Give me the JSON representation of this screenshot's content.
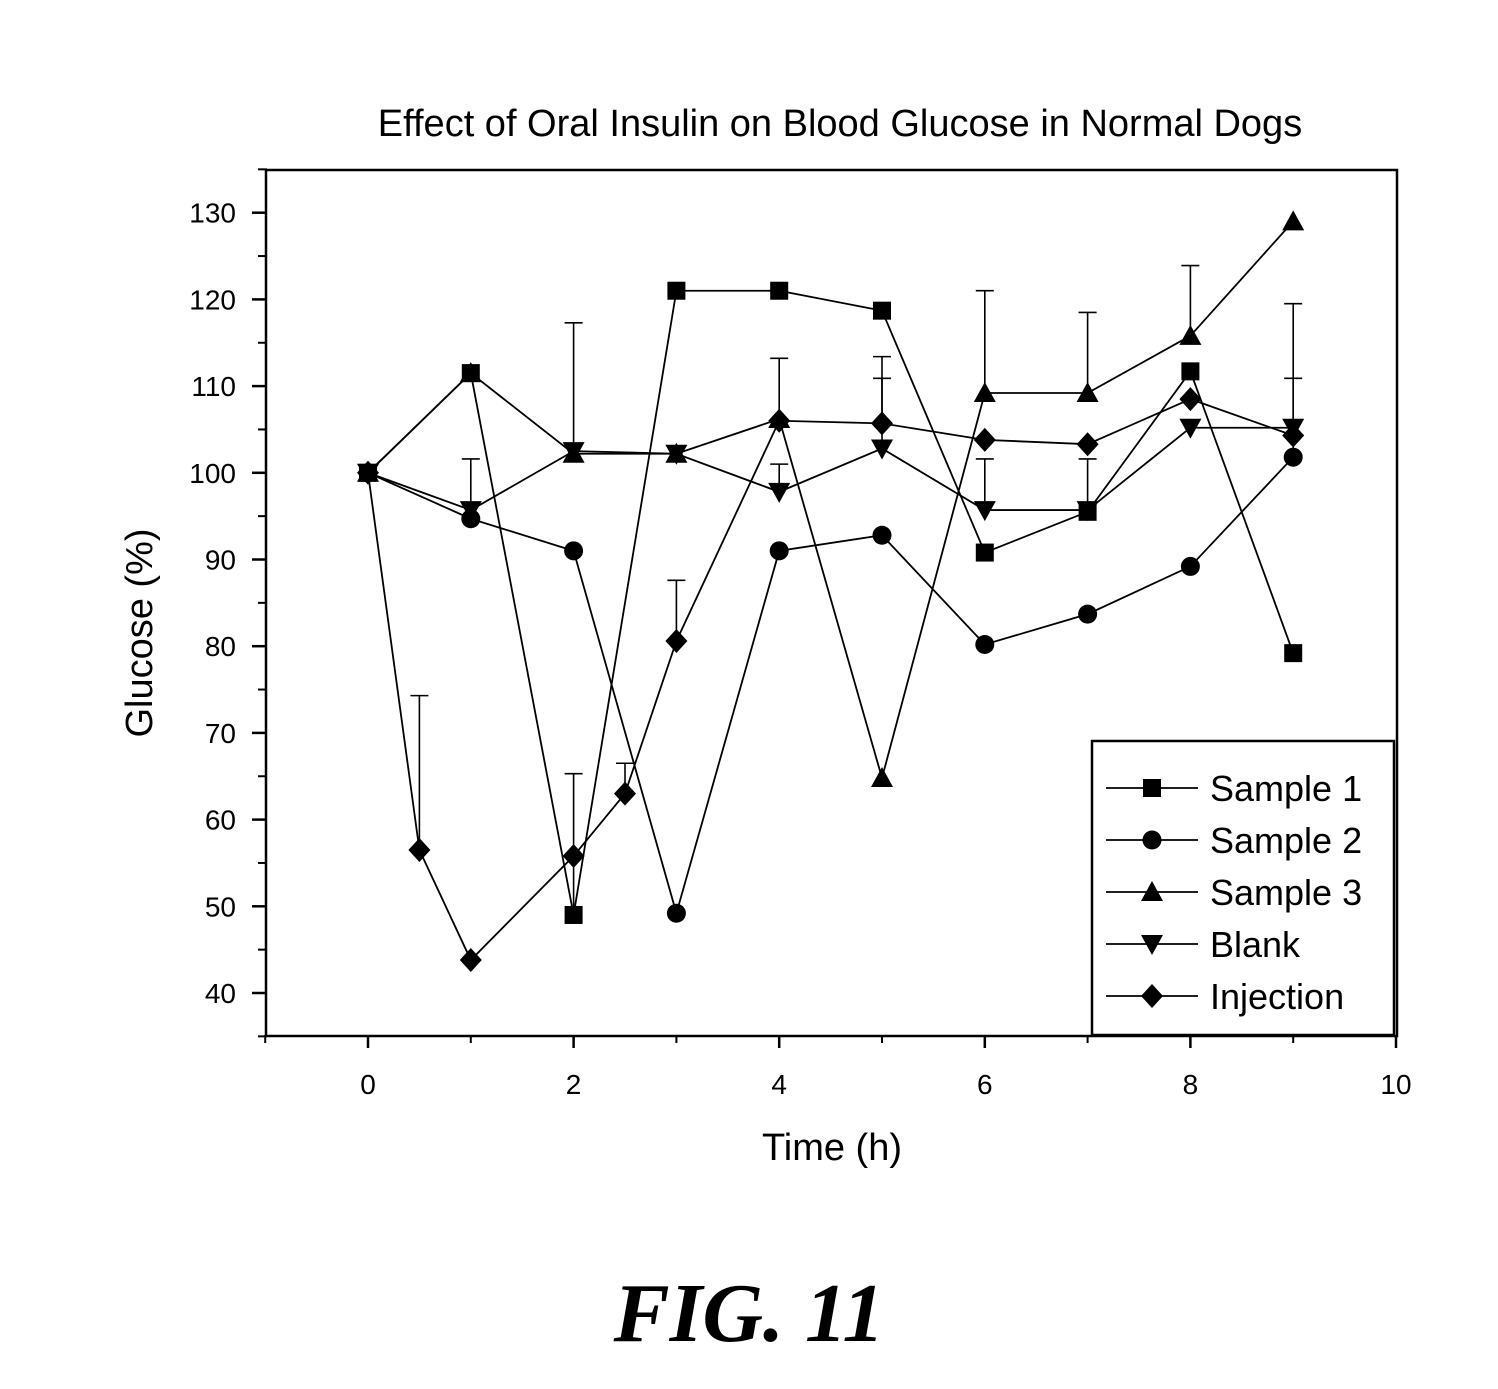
{
  "chart_data": {
    "type": "line",
    "title": "Effect of Oral Insulin on Blood Glucose in Normal Dogs",
    "xlabel": "Time (h)",
    "ylabel": "Glucose (%)",
    "xlim": [
      -1,
      10
    ],
    "ylim": [
      35,
      135
    ],
    "xticks": [
      0,
      2,
      4,
      6,
      8,
      10
    ],
    "yticks": [
      40,
      50,
      60,
      70,
      80,
      90,
      100,
      110,
      120,
      130
    ],
    "grid": false,
    "legend_position": "bottom-right",
    "series": [
      {
        "name": "Sample 1",
        "marker": "square",
        "x": [
          0,
          1,
          2,
          3,
          4,
          5,
          6,
          7,
          8,
          9
        ],
        "y": [
          100,
          111.5,
          49,
          121,
          121,
          118.7,
          90.8,
          95.5,
          111.7,
          79.2
        ],
        "error_upper": [
          null,
          null,
          65.3,
          null,
          null,
          null,
          null,
          null,
          null,
          null
        ]
      },
      {
        "name": "Sample 2",
        "marker": "circle",
        "x": [
          0,
          1,
          2,
          3,
          4,
          5,
          6,
          7,
          8,
          9
        ],
        "y": [
          100,
          94.7,
          91,
          49.2,
          91,
          92.8,
          80.2,
          83.7,
          89.2,
          101.8
        ],
        "error_upper": [
          null,
          null,
          null,
          null,
          null,
          null,
          null,
          null,
          null,
          110.9
        ]
      },
      {
        "name": "Sample 3",
        "marker": "triangle-up",
        "x": [
          0,
          1,
          2,
          3,
          4,
          5,
          6,
          7,
          8,
          9
        ],
        "y": [
          100,
          111.5,
          102.2,
          102.2,
          106.2,
          64.8,
          109.2,
          109.2,
          115.8,
          129
        ],
        "error_upper": [
          null,
          null,
          117.3,
          null,
          null,
          null,
          121,
          118.5,
          123.9,
          null
        ]
      },
      {
        "name": "Blank",
        "marker": "triangle-down",
        "x": [
          0,
          1,
          2,
          3,
          4,
          5,
          6,
          7,
          8,
          9
        ],
        "y": [
          100,
          95.7,
          102.5,
          102.2,
          97.8,
          102.8,
          95.7,
          95.7,
          105.2,
          105.2
        ],
        "error_upper": [
          null,
          101.6,
          null,
          null,
          101,
          110.9,
          101.6,
          101.6,
          null,
          119.5
        ]
      },
      {
        "name": "Injection",
        "marker": "diamond",
        "x": [
          0,
          0.5,
          1,
          2,
          2.5,
          3,
          4,
          5,
          6,
          7,
          8,
          9
        ],
        "y": [
          100,
          56.5,
          43.8,
          55.8,
          63,
          80.6,
          106,
          105.7,
          103.8,
          103.3,
          108.5,
          104.3
        ],
        "error_upper": [
          null,
          74.3,
          null,
          null,
          66.5,
          87.6,
          113.2,
          113.4,
          null,
          null,
          null,
          null
        ]
      }
    ]
  },
  "figure_label": "FIG. 11"
}
